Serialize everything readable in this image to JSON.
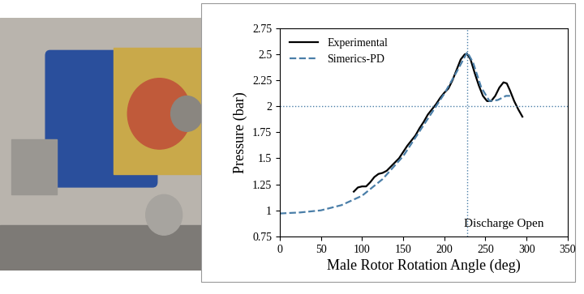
{
  "chart_data": {
    "type": "line",
    "x_label": "Male Rotor Rotation Angle (deg)",
    "y_label": "Pressure (bar)",
    "series": [
      {
        "name": "Experimental",
        "color": "#000000",
        "line_style": "solid",
        "x": [
          90,
          95,
          100,
          105,
          110,
          115,
          120,
          125,
          130,
          135,
          140,
          145,
          150,
          155,
          160,
          165,
          170,
          175,
          180,
          185,
          190,
          195,
          200,
          205,
          210,
          215,
          220,
          225,
          228,
          232,
          237,
          242,
          247,
          252,
          257,
          262,
          267,
          272,
          276,
          280,
          285,
          290,
          295
        ],
        "values": [
          1.18,
          1.22,
          1.23,
          1.23,
          1.27,
          1.32,
          1.35,
          1.36,
          1.38,
          1.42,
          1.46,
          1.5,
          1.56,
          1.62,
          1.67,
          1.72,
          1.79,
          1.85,
          1.92,
          1.97,
          2.02,
          2.08,
          2.13,
          2.17,
          2.25,
          2.35,
          2.45,
          2.5,
          2.5,
          2.45,
          2.32,
          2.2,
          2.1,
          2.05,
          2.05,
          2.1,
          2.18,
          2.23,
          2.22,
          2.15,
          2.05,
          1.97,
          1.9
        ]
      },
      {
        "name": "Simerics-PD",
        "color": "#4a7ea8",
        "line_style": "dashed",
        "x": [
          0,
          25,
          50,
          75,
          100,
          125,
          150,
          175,
          200,
          215,
          228,
          235,
          245,
          255,
          265,
          275,
          280
        ],
        "values": [
          0.97,
          0.98,
          1.0,
          1.05,
          1.14,
          1.3,
          1.52,
          1.82,
          2.12,
          2.33,
          2.52,
          2.42,
          2.18,
          2.05,
          2.06,
          2.1,
          2.1
        ]
      }
    ],
    "vline": 228,
    "hline": 2,
    "annotations": [
      {
        "text": "Discharge Open"
      }
    ],
    "xlim": [
      0,
      350
    ],
    "xticks": [
      0,
      50,
      100,
      150,
      200,
      250,
      300,
      350
    ],
    "ylim": [
      0.75,
      2.75
    ],
    "yticks": [
      0.75,
      1,
      1.25,
      1.5,
      1.75,
      2,
      2.25,
      2.5,
      2.75
    ],
    "legend": "upper left",
    "grid": false
  }
}
